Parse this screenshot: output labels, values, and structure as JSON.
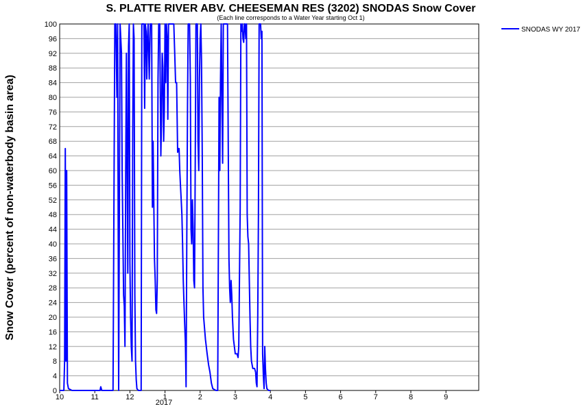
{
  "chart_data": {
    "type": "line",
    "title": "S. PLATTE RIVER ABV. CHEESEMAN RES (3202) SNODAS Snow Cover",
    "subtitle": "(Each line corresponds to a Water Year starting Oct 1)",
    "ylabel": "Snow Cover (percent of non-waterbody basin area)",
    "xlabel": "",
    "ylim": [
      0,
      100
    ],
    "y_ticks": [
      0,
      4,
      8,
      12,
      16,
      20,
      24,
      28,
      32,
      36,
      40,
      44,
      48,
      52,
      56,
      60,
      64,
      68,
      72,
      76,
      80,
      84,
      88,
      92,
      96,
      100
    ],
    "x_tick_labels": [
      "10",
      "11",
      "12",
      "1",
      "2",
      "3",
      "4",
      "5",
      "6",
      "7",
      "8",
      "9"
    ],
    "x_year_label": "2017",
    "grid": true,
    "legend_position": "top-right, outside plot",
    "series": [
      {
        "name": "SNODAS WY 2017",
        "color": "#0000ff",
        "x_unit": "month",
        "points": [
          [
            10.0,
            0
          ],
          [
            10.12,
            0
          ],
          [
            10.14,
            8
          ],
          [
            10.16,
            66
          ],
          [
            10.18,
            8
          ],
          [
            10.2,
            60
          ],
          [
            10.22,
            2
          ],
          [
            10.25,
            0.5
          ],
          [
            10.35,
            0
          ],
          [
            11.0,
            0
          ],
          [
            11.15,
            0
          ],
          [
            11.17,
            1
          ],
          [
            11.2,
            0
          ],
          [
            11.52,
            0
          ],
          [
            11.55,
            62
          ],
          [
            11.57,
            100
          ],
          [
            11.6,
            100
          ],
          [
            11.63,
            80
          ],
          [
            11.65,
            100
          ],
          [
            11.68,
            0
          ],
          [
            11.72,
            100
          ],
          [
            11.76,
            92
          ],
          [
            11.78,
            60
          ],
          [
            11.82,
            26
          ],
          [
            11.84,
            23
          ],
          [
            11.86,
            12
          ],
          [
            11.88,
            60
          ],
          [
            11.9,
            92
          ],
          [
            11.92,
            62
          ],
          [
            11.94,
            32
          ],
          [
            11.96,
            94
          ],
          [
            11.98,
            100
          ],
          [
            12.0,
            35
          ],
          [
            12.02,
            20
          ],
          [
            12.04,
            12
          ],
          [
            12.06,
            8
          ],
          [
            12.08,
            70
          ],
          [
            12.1,
            100
          ],
          [
            12.12,
            96
          ],
          [
            12.14,
            26
          ],
          [
            12.16,
            8
          ],
          [
            12.18,
            3
          ],
          [
            12.2,
            0.5
          ],
          [
            12.24,
            0
          ],
          [
            12.3,
            0
          ],
          [
            12.32,
            0
          ],
          [
            12.34,
            100
          ],
          [
            12.37,
            100
          ],
          [
            12.4,
            100
          ],
          [
            12.42,
            77
          ],
          [
            12.44,
            100
          ],
          [
            12.46,
            98
          ],
          [
            12.48,
            85
          ],
          [
            12.5,
            96
          ],
          [
            12.52,
            100
          ],
          [
            12.55,
            85
          ],
          [
            12.58,
            100
          ],
          [
            12.62,
            100
          ],
          [
            12.64,
            50
          ],
          [
            12.66,
            68
          ],
          [
            12.7,
            36
          ],
          [
            12.72,
            30
          ],
          [
            12.74,
            22
          ],
          [
            12.76,
            21
          ],
          [
            12.78,
            30
          ],
          [
            12.8,
            85
          ],
          [
            12.82,
            100
          ],
          [
            12.85,
            100
          ],
          [
            12.88,
            64
          ],
          [
            12.9,
            74
          ],
          [
            12.92,
            92
          ],
          [
            12.94,
            88
          ],
          [
            12.96,
            68
          ],
          [
            12.98,
            77
          ],
          [
            13.0,
            100
          ],
          [
            13.02,
            84
          ],
          [
            13.04,
            100
          ],
          [
            13.06,
            96
          ],
          [
            13.08,
            74
          ],
          [
            13.1,
            100
          ],
          [
            13.12,
            100
          ],
          [
            13.15,
            100
          ],
          [
            13.2,
            100
          ],
          [
            13.25,
            100
          ],
          [
            13.28,
            91
          ],
          [
            13.3,
            84
          ],
          [
            13.33,
            84
          ],
          [
            13.36,
            65
          ],
          [
            13.38,
            66
          ],
          [
            13.4,
            66
          ],
          [
            13.42,
            60
          ],
          [
            13.44,
            56
          ],
          [
            13.46,
            52
          ],
          [
            13.48,
            48
          ],
          [
            13.5,
            40
          ],
          [
            13.52,
            30
          ],
          [
            13.54,
            24
          ],
          [
            13.56,
            18
          ],
          [
            13.58,
            13
          ],
          [
            13.6,
            1
          ],
          [
            13.62,
            40
          ],
          [
            13.64,
            78
          ],
          [
            13.66,
            100
          ],
          [
            13.68,
            100
          ],
          [
            13.7,
            100
          ],
          [
            13.72,
            85
          ],
          [
            13.74,
            44
          ],
          [
            13.76,
            40
          ],
          [
            13.78,
            52
          ],
          [
            13.8,
            44
          ],
          [
            13.82,
            30
          ],
          [
            13.84,
            28
          ],
          [
            13.86,
            60
          ],
          [
            13.88,
            100
          ],
          [
            13.9,
            100
          ],
          [
            13.92,
            100
          ],
          [
            13.94,
            68
          ],
          [
            13.96,
            60
          ],
          [
            13.98,
            85
          ],
          [
            14.0,
            96
          ],
          [
            14.02,
            100
          ],
          [
            14.04,
            90
          ],
          [
            14.06,
            64
          ],
          [
            14.08,
            28
          ],
          [
            14.1,
            20
          ],
          [
            14.15,
            14
          ],
          [
            14.2,
            10
          ],
          [
            14.24,
            7
          ],
          [
            14.28,
            5
          ],
          [
            14.32,
            2
          ],
          [
            14.36,
            0.5
          ],
          [
            14.45,
            0
          ],
          [
            14.5,
            0
          ],
          [
            14.52,
            40
          ],
          [
            14.54,
            80
          ],
          [
            14.56,
            60
          ],
          [
            14.58,
            85
          ],
          [
            14.6,
            100
          ],
          [
            14.62,
            80
          ],
          [
            14.64,
            62
          ],
          [
            14.66,
            100
          ],
          [
            14.68,
            100
          ],
          [
            14.7,
            100
          ],
          [
            14.72,
            100
          ],
          [
            14.74,
            100
          ],
          [
            14.78,
            100
          ],
          [
            14.82,
            36
          ],
          [
            14.84,
            28
          ],
          [
            14.86,
            24
          ],
          [
            14.88,
            30
          ],
          [
            14.9,
            26
          ],
          [
            14.92,
            20
          ],
          [
            14.95,
            14
          ],
          [
            15.0,
            10
          ],
          [
            15.05,
            10
          ],
          [
            15.08,
            9
          ],
          [
            15.1,
            12
          ],
          [
            15.12,
            30
          ],
          [
            15.14,
            50
          ],
          [
            15.16,
            100
          ],
          [
            15.18,
            98
          ],
          [
            15.2,
            100
          ],
          [
            15.22,
            96
          ],
          [
            15.24,
            95
          ],
          [
            15.26,
            100
          ],
          [
            15.28,
            100
          ],
          [
            15.3,
            96
          ],
          [
            15.32,
            100
          ],
          [
            15.34,
            48
          ],
          [
            15.36,
            42
          ],
          [
            15.38,
            40
          ],
          [
            15.4,
            30
          ],
          [
            15.42,
            20
          ],
          [
            15.44,
            12
          ],
          [
            15.46,
            8
          ],
          [
            15.5,
            6
          ],
          [
            15.55,
            6
          ],
          [
            15.58,
            5
          ],
          [
            15.6,
            2
          ],
          [
            15.62,
            1
          ],
          [
            15.64,
            20
          ],
          [
            15.66,
            48
          ],
          [
            15.68,
            100
          ],
          [
            15.7,
            100
          ],
          [
            15.72,
            100
          ],
          [
            15.74,
            96
          ],
          [
            15.76,
            98
          ],
          [
            15.78,
            10
          ],
          [
            15.8,
            4
          ],
          [
            15.82,
            0.5
          ],
          [
            15.84,
            12
          ],
          [
            15.86,
            6
          ],
          [
            15.88,
            2
          ],
          [
            15.9,
            0.5
          ],
          [
            15.95,
            0
          ],
          [
            16.0,
            0
          ]
        ]
      }
    ]
  }
}
